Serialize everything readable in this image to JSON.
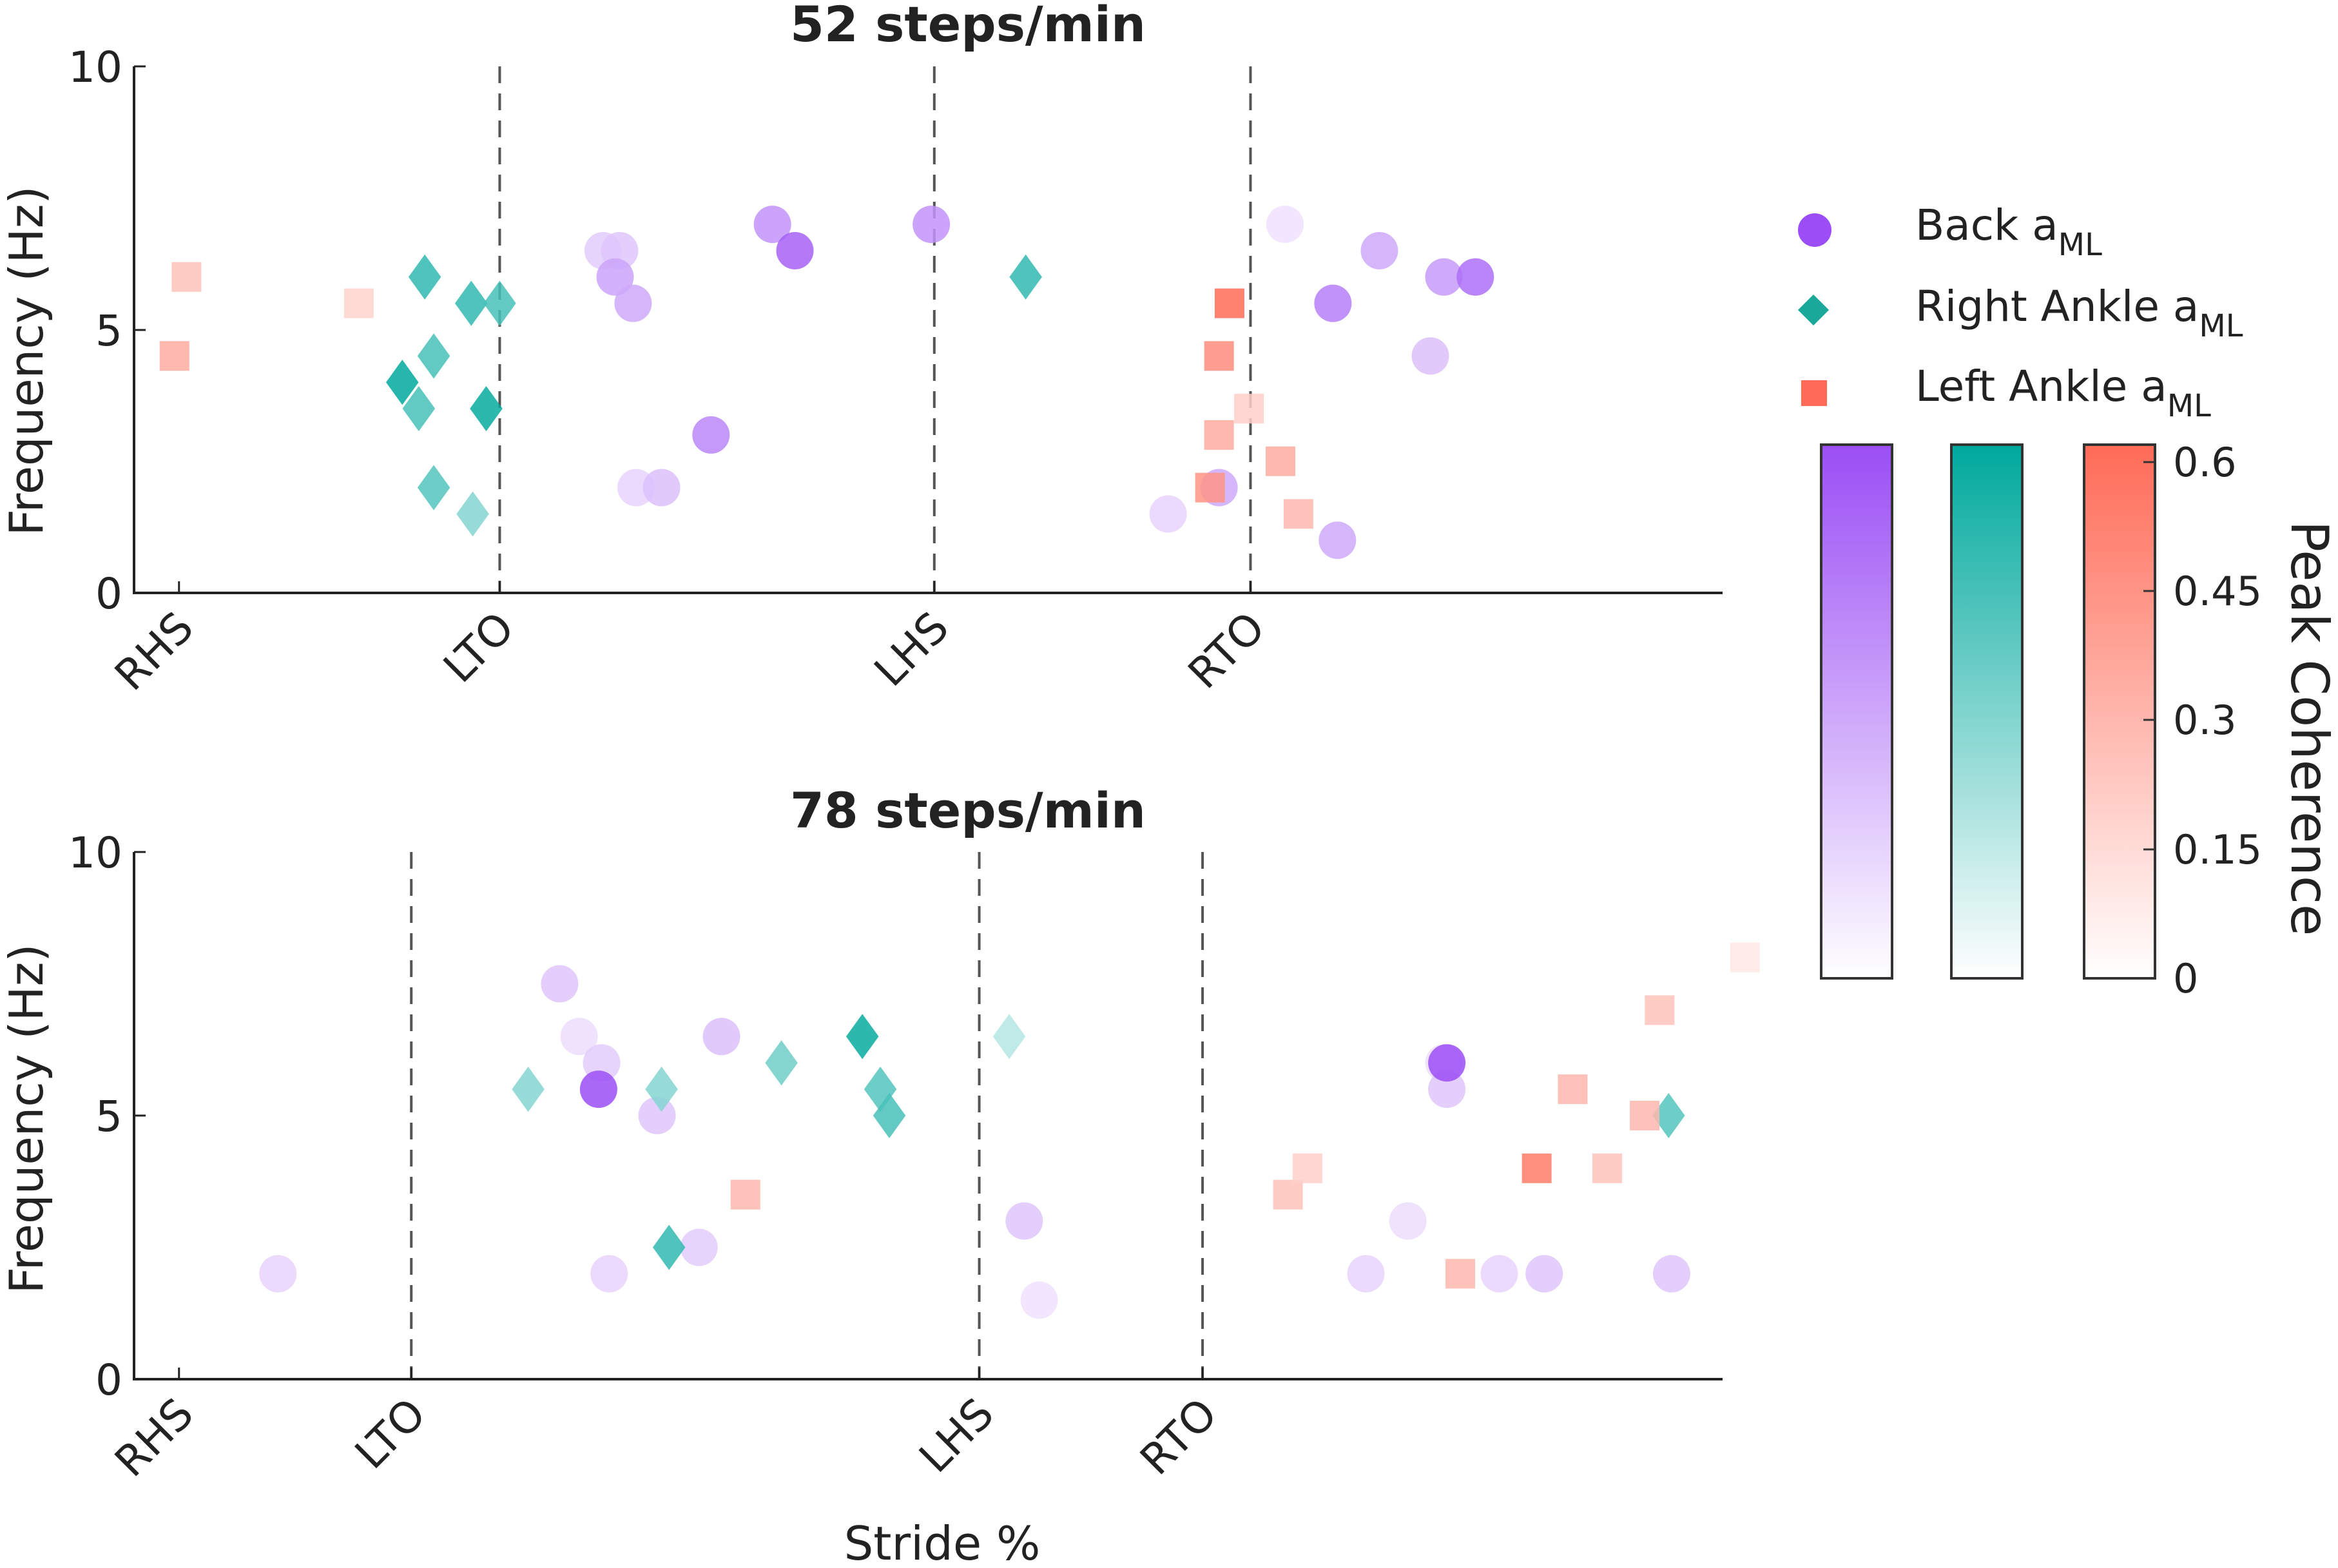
{
  "chart_data": {
    "type": "scatter",
    "colorbar": {
      "label": "Peak Coherence",
      "ticks": [
        "0",
        "0.15",
        "0.3",
        "0.45",
        "0.6"
      ],
      "range": [
        0,
        0.62
      ],
      "colors": {
        "Back": "#9b4ef5",
        "Right Ankle": "#00a99d",
        "Left Ankle": "#ff6b57"
      }
    },
    "legend": [
      {
        "series": "Back",
        "label": "Back a",
        "sub": "ML",
        "marker": "circle",
        "color": "#9b4ef5"
      },
      {
        "series": "Right Ankle",
        "label": "Right Ankle a",
        "sub": "ML",
        "marker": "diamond",
        "color": "#1aa89a"
      },
      {
        "series": "Left Ankle",
        "label": "Left Ankle a",
        "sub": "ML",
        "marker": "square",
        "color": "#ff6b57"
      }
    ],
    "xlabel": "Stride %",
    "panels": [
      {
        "title": "52 steps/min",
        "ylabel": "Frequency (Hz)",
        "ylim": [
          0,
          10
        ],
        "yticks": [
          "0",
          "5",
          "10"
        ],
        "xlim": [
          -3,
          103
        ],
        "events": [
          {
            "label": "RHS",
            "x": 0
          },
          {
            "label": "LTO",
            "x": 21.4
          },
          {
            "label": "LHS",
            "x": 50.4
          },
          {
            "label": "RTO",
            "x": 71.5
          }
        ],
        "dashed_at": [
          21.4,
          50.4,
          71.5
        ],
        "series": [
          {
            "name": "Back",
            "marker": "circle",
            "points": [
              [
                28.3,
                6.5,
                0.18
              ],
              [
                29.4,
                6.5,
                0.2
              ],
              [
                29.1,
                6.0,
                0.32
              ],
              [
                30.3,
                5.5,
                0.3
              ],
              [
                30.5,
                2.0,
                0.15
              ],
              [
                32.2,
                2.0,
                0.22
              ],
              [
                35.5,
                3.0,
                0.42
              ],
              [
                39.6,
                7.0,
                0.38
              ],
              [
                41.1,
                6.5,
                0.55
              ],
              [
                50.2,
                7.0,
                0.38
              ],
              [
                66.0,
                1.5,
                0.15
              ],
              [
                69.4,
                2.0,
                0.3
              ],
              [
                73.8,
                7.0,
                0.1
              ],
              [
                77.0,
                5.5,
                0.45
              ],
              [
                77.3,
                1.0,
                0.3
              ],
              [
                80.1,
                6.5,
                0.3
              ],
              [
                84.4,
                6.0,
                0.35
              ],
              [
                86.5,
                6.0,
                0.5
              ],
              [
                83.5,
                4.5,
                0.22
              ]
            ]
          },
          {
            "name": "Right Ankle",
            "marker": "diamond",
            "points": [
              [
                16.4,
                6.0,
                0.5
              ],
              [
                19.5,
                5.5,
                0.5
              ],
              [
                21.4,
                5.5,
                0.45
              ],
              [
                17.0,
                4.5,
                0.45
              ],
              [
                14.9,
                4.0,
                0.75
              ],
              [
                16.0,
                3.5,
                0.45
              ],
              [
                20.5,
                3.5,
                0.6
              ],
              [
                17.0,
                2.0,
                0.42
              ],
              [
                19.6,
                1.5,
                0.3
              ],
              [
                56.5,
                6.0,
                0.5
              ]
            ]
          },
          {
            "name": "Left Ankle",
            "marker": "square",
            "points": [
              [
                0.5,
                6.0,
                0.25
              ],
              [
                -0.3,
                4.5,
                0.35
              ],
              [
                12.0,
                5.5,
                0.18
              ],
              [
                70.1,
                5.5,
                0.62
              ],
              [
                69.4,
                4.5,
                0.48
              ],
              [
                69.4,
                3.0,
                0.35
              ],
              [
                68.8,
                2.0,
                0.45
              ],
              [
                71.4,
                3.5,
                0.2
              ],
              [
                73.5,
                2.5,
                0.35
              ],
              [
                74.7,
                1.5,
                0.3
              ]
            ]
          }
        ]
      },
      {
        "title": "78 steps/min",
        "ylabel": "Frequency (Hz)",
        "ylim": [
          0,
          10
        ],
        "yticks": [
          "0",
          "5",
          "10"
        ],
        "xlim": [
          -3,
          103
        ],
        "events": [
          {
            "label": "RHS",
            "x": 0
          },
          {
            "label": "LTO",
            "x": 15.5
          },
          {
            "label": "LHS",
            "x": 53.4
          },
          {
            "label": "RTO",
            "x": 68.3
          }
        ],
        "dashed_at": [
          15.5,
          53.4,
          68.3
        ],
        "series": [
          {
            "name": "Back",
            "marker": "circle",
            "points": [
              [
                6.6,
                2.0,
                0.15
              ],
              [
                25.4,
                7.5,
                0.2
              ],
              [
                26.7,
                6.5,
                0.12
              ],
              [
                28.2,
                6.0,
                0.18
              ],
              [
                28.0,
                5.5,
                0.75
              ],
              [
                28.7,
                2.0,
                0.15
              ],
              [
                31.9,
                5.0,
                0.2
              ],
              [
                34.7,
                2.5,
                0.18
              ],
              [
                36.2,
                6.5,
                0.22
              ],
              [
                56.4,
                3.0,
                0.2
              ],
              [
                57.4,
                1.5,
                0.1
              ],
              [
                79.2,
                2.0,
                0.15
              ],
              [
                82.0,
                3.0,
                0.12
              ],
              [
                84.4,
                6.0,
                0.12
              ],
              [
                84.6,
                5.5,
                0.2
              ],
              [
                84.6,
                6.0,
                0.75
              ],
              [
                88.1,
                2.0,
                0.15
              ],
              [
                91.1,
                2.0,
                0.2
              ],
              [
                99.6,
                2.0,
                0.2
              ]
            ]
          },
          {
            "name": "Right Ankle",
            "marker": "diamond",
            "points": [
              [
                23.3,
                5.5,
                0.3
              ],
              [
                32.2,
                5.5,
                0.3
              ],
              [
                40.2,
                6.0,
                0.35
              ],
              [
                45.6,
                6.5,
                0.6
              ],
              [
                46.8,
                5.5,
                0.42
              ],
              [
                47.4,
                5.0,
                0.45
              ],
              [
                32.7,
                2.5,
                0.5
              ],
              [
                55.4,
                6.5,
                0.18
              ],
              [
                99.4,
                5.0,
                0.42
              ]
            ]
          },
          {
            "name": "Left Ankle",
            "marker": "square",
            "points": [
              [
                37.8,
                3.5,
                0.3
              ],
              [
                74.0,
                3.5,
                0.25
              ],
              [
                75.3,
                4.0,
                0.2
              ],
              [
                85.5,
                2.0,
                0.3
              ],
              [
                90.6,
                4.0,
                0.55
              ],
              [
                93.0,
                5.5,
                0.3
              ],
              [
                95.3,
                4.0,
                0.25
              ],
              [
                97.8,
                5.0,
                0.3
              ],
              [
                98.8,
                7.0,
                0.25
              ],
              [
                104.5,
                8.0,
                0.1
              ]
            ]
          }
        ]
      }
    ]
  }
}
